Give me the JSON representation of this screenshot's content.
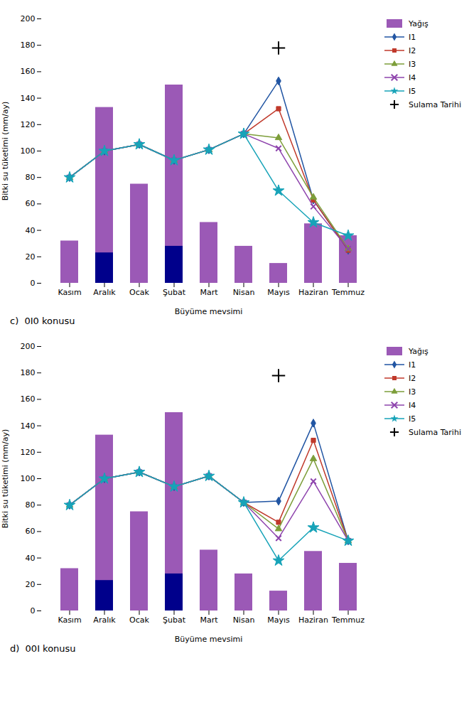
{
  "chart_data": [
    {
      "type": "bar",
      "title": "c)  0I0 konusu",
      "xlabel": "Büyüme mevsimi",
      "ylabel": "Bitki su tüketimi (mm/ay)",
      "categories": [
        "Kasım",
        "Aralık",
        "Ocak",
        "Şubat",
        "Mart",
        "Nisan",
        "Mayıs",
        "Haziran",
        "Temmuz"
      ],
      "ylim": [
        0,
        200
      ],
      "yticks": [
        0,
        20,
        40,
        60,
        80,
        100,
        120,
        140,
        160,
        180,
        200
      ],
      "grid": false,
      "legend": "right",
      "series": [
        {
          "name": "Yağış",
          "type": "bar",
          "color": "#9b59b6",
          "values": [
            32,
            133,
            75,
            150,
            46,
            28,
            15,
            45,
            36
          ]
        },
        {
          "type": "bar",
          "color": "#00008B",
          "values": [
            null,
            23,
            null,
            28,
            null,
            null,
            null,
            null,
            null
          ]
        },
        {
          "name": "I1",
          "type": "line",
          "color": "#2155a3",
          "marker": "diamond",
          "values": [
            80,
            100,
            105,
            93,
            101,
            113,
            153,
            63,
            25
          ]
        },
        {
          "name": "I2",
          "type": "line",
          "color": "#c0392b",
          "marker": "square",
          "values": [
            80,
            100,
            105,
            93,
            101,
            113,
            132,
            63,
            25
          ]
        },
        {
          "name": "I3",
          "type": "line",
          "color": "#7d9e3a",
          "marker": "triangle",
          "values": [
            80,
            100,
            105,
            93,
            101,
            113,
            110,
            65,
            26
          ]
        },
        {
          "name": "I4",
          "type": "line",
          "color": "#8e44ad",
          "marker": "x",
          "values": [
            80,
            100,
            105,
            93,
            101,
            113,
            102,
            58,
            26
          ]
        },
        {
          "name": "I5",
          "type": "line",
          "color": "#17a3b8",
          "marker": "star",
          "values": [
            80,
            100,
            105,
            93,
            101,
            113,
            70,
            46,
            36
          ]
        },
        {
          "name": "Sulama Tarihi",
          "type": "scatter",
          "color": "black",
          "marker": "plus",
          "values": [
            null,
            null,
            null,
            null,
            null,
            null,
            178,
            null,
            null
          ]
        }
      ]
    },
    {
      "type": "bar",
      "title": "d)  00I konusu",
      "xlabel": "Büyüme mevsimi",
      "ylabel": "Bitki su tüketimi (mm/ay)",
      "categories": [
        "Kasım",
        "Aralık",
        "Ocak",
        "Şubat",
        "Mart",
        "Nisan",
        "Mayıs",
        "Haziran",
        "Temmuz"
      ],
      "ylim": [
        0,
        200
      ],
      "yticks": [
        0,
        20,
        40,
        60,
        80,
        100,
        120,
        140,
        160,
        180,
        200
      ],
      "grid": false,
      "legend": "right",
      "series": [
        {
          "name": "Yağış",
          "type": "bar",
          "color": "#9b59b6",
          "values": [
            32,
            133,
            75,
            150,
            46,
            28,
            15,
            45,
            36
          ]
        },
        {
          "type": "bar",
          "color": "#00008B",
          "values": [
            null,
            23,
            null,
            28,
            null,
            null,
            null,
            null,
            null
          ]
        },
        {
          "name": "I1",
          "type": "line",
          "color": "#2155a3",
          "marker": "diamond",
          "values": [
            80,
            100,
            105,
            94,
            102,
            82,
            83,
            142,
            53
          ]
        },
        {
          "name": "I2",
          "type": "line",
          "color": "#c0392b",
          "marker": "square",
          "values": [
            80,
            100,
            105,
            94,
            102,
            82,
            67,
            129,
            53
          ]
        },
        {
          "name": "I3",
          "type": "line",
          "color": "#7d9e3a",
          "marker": "triangle",
          "values": [
            80,
            100,
            105,
            94,
            102,
            82,
            62,
            115,
            53
          ]
        },
        {
          "name": "I4",
          "type": "line",
          "color": "#8e44ad",
          "marker": "x",
          "values": [
            80,
            100,
            105,
            94,
            102,
            82,
            55,
            98,
            53
          ]
        },
        {
          "name": "I5",
          "type": "line",
          "color": "#17a3b8",
          "marker": "star",
          "values": [
            80,
            100,
            105,
            94,
            102,
            82,
            38,
            63,
            53
          ]
        },
        {
          "name": "Sulama Tarihi",
          "type": "scatter",
          "color": "black",
          "marker": "plus",
          "values": [
            null,
            null,
            null,
            null,
            null,
            null,
            178,
            null,
            null
          ]
        }
      ]
    }
  ]
}
